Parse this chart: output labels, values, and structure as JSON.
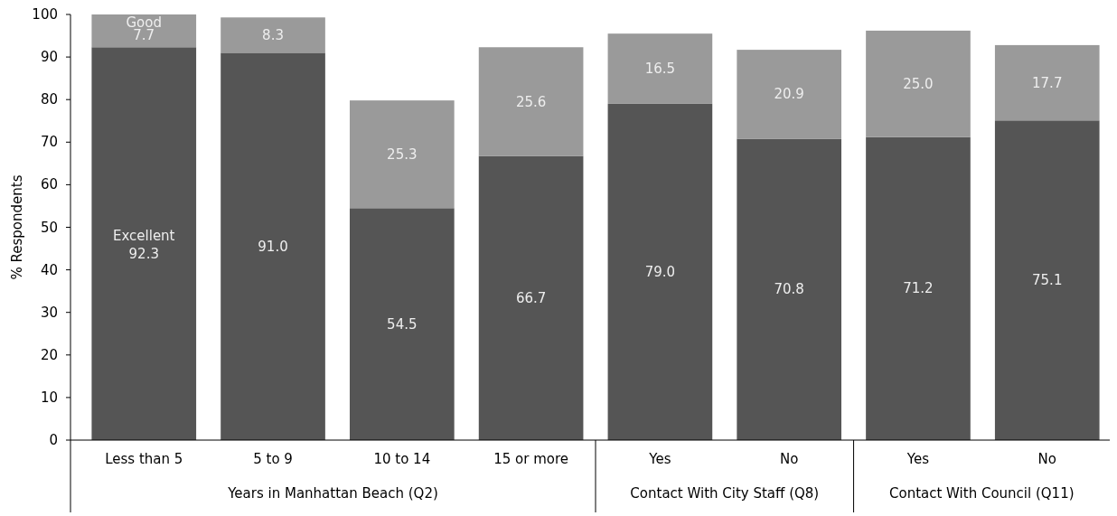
{
  "chart_data": {
    "type": "bar",
    "stacked": true,
    "ylabel": "% Respondents",
    "categories": [
      "Less than 5",
      "5 to 9",
      "10 to 14",
      "15 or more",
      "Yes",
      "No",
      "Yes",
      "No"
    ],
    "series": [
      {
        "name": "Excellent",
        "color": "#555555",
        "values": [
          92.3,
          91.0,
          54.5,
          66.7,
          79.0,
          70.8,
          71.2,
          75.1
        ],
        "value_labels": [
          "92.3",
          "91.0",
          "54.5",
          "66.7",
          "79.0",
          "70.8",
          "71.2",
          "75.1"
        ]
      },
      {
        "name": "Good",
        "color": "#9a9a9a",
        "values": [
          7.7,
          8.3,
          25.3,
          25.6,
          16.5,
          20.9,
          25.0,
          17.7
        ],
        "value_labels": [
          "7.7",
          "8.3",
          "25.3",
          "25.6",
          "16.5",
          "20.9",
          "25.0",
          "17.7"
        ]
      }
    ],
    "ylim": [
      0,
      100
    ],
    "yticks": [
      0,
      10,
      20,
      30,
      40,
      50,
      60,
      70,
      80,
      90,
      100
    ],
    "annotations": [
      "Years in Manhattan Beach (Q2)",
      "Contact With City Staff (Q8)",
      "Contact With Council (Q11)"
    ]
  }
}
